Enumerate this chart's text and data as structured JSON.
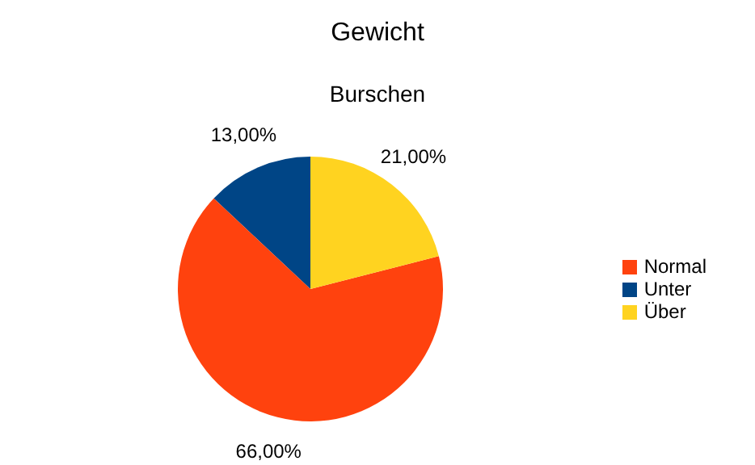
{
  "chart_data": {
    "type": "pie",
    "title": "Gewicht",
    "subtitle": "Burschen",
    "categories": [
      "Unter",
      "Normal",
      "Über"
    ],
    "values": [
      13,
      66,
      21
    ],
    "colors": [
      "#004586",
      "#ff420e",
      "#ffd320"
    ],
    "value_labels": [
      "13,00%",
      "66,00%",
      "21,00%"
    ],
    "legend": "right"
  }
}
